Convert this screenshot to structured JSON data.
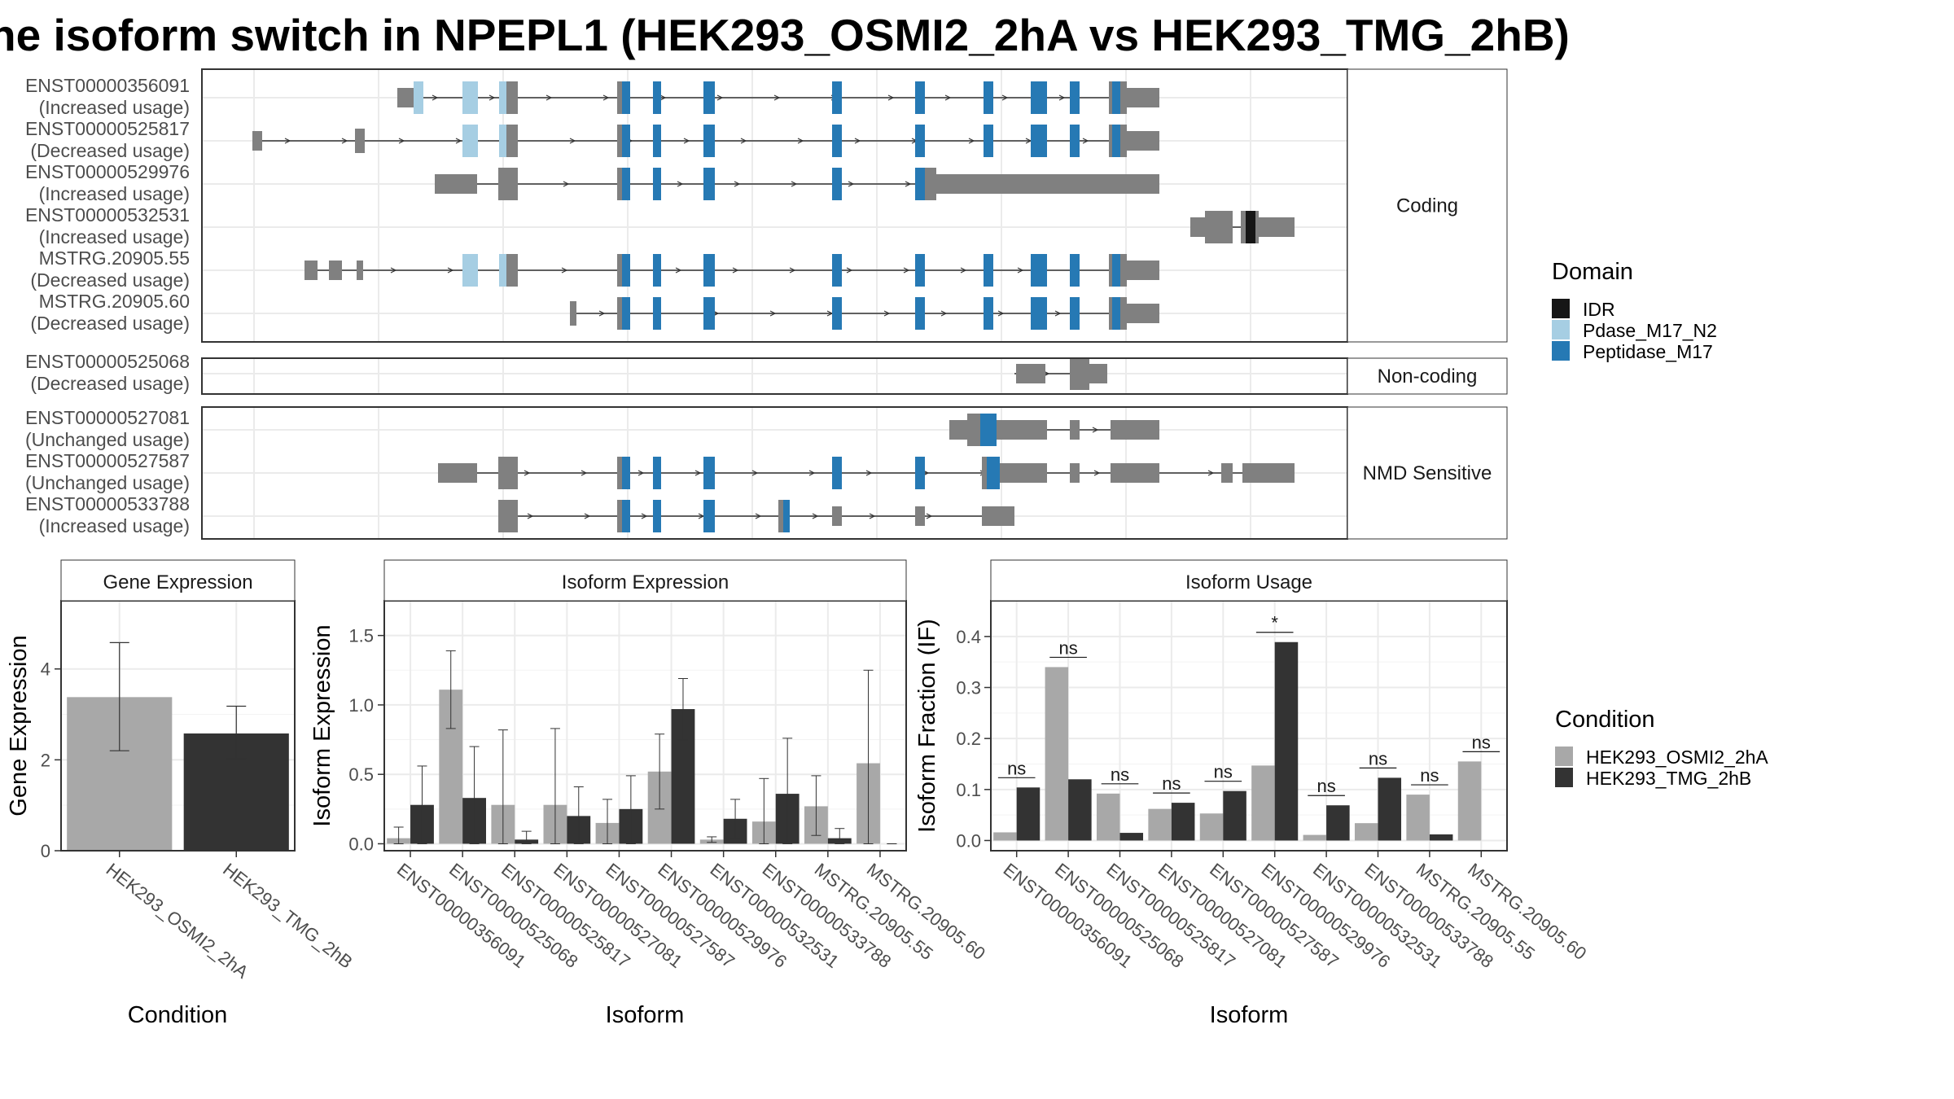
{
  "title": "he isoform switch in NPEPL1 (HEK293_OSMI2_2hA vs HEK293_TMG_2hB)",
  "colors": {
    "idr": "#161616",
    "pdase": "#a6cee3",
    "peptidase": "#2679b4",
    "utr": "#808080",
    "cond_a": "#a8a8a8",
    "cond_b": "#333333",
    "grid": "#ebebeb",
    "strip_bg": "#ffffff",
    "frame": "#333333"
  },
  "structure": {
    "panels": [
      {
        "key": "coding",
        "label": "Coding",
        "rows": [
          {
            "name": "ENST00000356091",
            "usage": "(Increased usage)"
          },
          {
            "name": "ENST00000525817",
            "usage": "(Decreased usage)"
          },
          {
            "name": "ENST00000529976",
            "usage": "(Increased usage)"
          },
          {
            "name": "ENST00000532531",
            "usage": "(Increased usage)"
          },
          {
            "name": "MSTRG.20905.55",
            "usage": "(Decreased usage)"
          },
          {
            "name": "MSTRG.20905.60",
            "usage": "(Decreased usage)"
          }
        ]
      },
      {
        "key": "noncoding",
        "label": "Non-coding",
        "rows": [
          {
            "name": "ENST00000525068",
            "usage": "(Decreased usage)"
          }
        ]
      },
      {
        "key": "nmd",
        "label": "NMD Sensitive",
        "rows": [
          {
            "name": "ENST00000527081",
            "usage": "(Unchanged usage)"
          },
          {
            "name": "ENST00000527587",
            "usage": "(Unchanged usage)"
          },
          {
            "name": "ENST00000533788",
            "usage": "(Increased usage)"
          }
        ]
      }
    ]
  },
  "legend_domain": {
    "title": "Domain",
    "items": [
      {
        "label": "IDR",
        "color": "#161616"
      },
      {
        "label": "Pdase_M17_N2",
        "color": "#a6cee3"
      },
      {
        "label": "Peptidase_M17",
        "color": "#2679b4"
      }
    ]
  },
  "legend_condition": {
    "title": "Condition",
    "items": [
      {
        "label": "HEK293_OSMI2_2hA",
        "color": "#a8a8a8"
      },
      {
        "label": "HEK293_TMG_2hB",
        "color": "#333333"
      }
    ]
  },
  "chart_data": [
    {
      "type": "bar",
      "strip": "Gene Expression",
      "xlabel": "Condition",
      "ylabel": "Gene Expression",
      "ylim": [
        0,
        5.5
      ],
      "yticks": [
        0,
        2,
        4
      ],
      "categories": [
        "HEK293_OSMI2_2hA",
        "HEK293_TMG_2hB"
      ],
      "values": [
        3.38,
        2.58
      ],
      "err_low": [
        2.2,
        2.03
      ],
      "err_high": [
        4.58,
        3.18
      ],
      "grid": true
    },
    {
      "type": "bar",
      "strip": "Isoform Expression",
      "xlabel": "Isoform",
      "ylabel": "Isoform Expression",
      "ylim": [
        -0.05,
        1.75
      ],
      "yticks": [
        0.0,
        0.5,
        1.0,
        1.5
      ],
      "categories": [
        "ENST00000356091",
        "ENST00000525068",
        "ENST00000525817",
        "ENST00000527081",
        "ENST00000527587",
        "ENST00000529976",
        "ENST00000532531",
        "ENST00000533788",
        "MSTRG.20905.55",
        "MSTRG.20905.60"
      ],
      "series": [
        {
          "name": "HEK293_OSMI2_2hA",
          "values": [
            0.04,
            1.11,
            0.28,
            0.28,
            0.15,
            0.52,
            0.03,
            0.16,
            0.27,
            0.58
          ],
          "err_low": [
            0.0,
            0.83,
            0.0,
            0.0,
            0.0,
            0.25,
            0.01,
            0.0,
            0.06,
            0.0
          ],
          "err_high": [
            0.12,
            1.39,
            0.82,
            0.83,
            0.32,
            0.79,
            0.05,
            0.47,
            0.49,
            1.25
          ]
        },
        {
          "name": "HEK293_TMG_2hB",
          "values": [
            0.28,
            0.33,
            0.03,
            0.2,
            0.25,
            0.97,
            0.18,
            0.36,
            0.04,
            0.0
          ],
          "err_low": [
            0.0,
            0.0,
            0.0,
            0.0,
            0.0,
            0.75,
            0.04,
            0.0,
            0.0,
            0.0
          ],
          "err_high": [
            0.56,
            0.7,
            0.09,
            0.41,
            0.49,
            1.19,
            0.32,
            0.76,
            0.11,
            0.0
          ]
        }
      ],
      "grid": true
    },
    {
      "type": "bar",
      "strip": "Isoform Usage",
      "xlabel": "Isoform",
      "ylabel": "Isoform Fraction (IF)",
      "ylim": [
        -0.02,
        0.47
      ],
      "yticks": [
        0.0,
        0.1,
        0.2,
        0.3,
        0.4
      ],
      "categories": [
        "ENST00000356091",
        "ENST00000525068",
        "ENST00000525817",
        "ENST00000527081",
        "ENST00000527587",
        "ENST00000529976",
        "ENST00000532531",
        "ENST00000533788",
        "MSTRG.20905.55",
        "MSTRG.20905.60"
      ],
      "series": [
        {
          "name": "HEK293_OSMI2_2hA",
          "values": [
            0.016,
            0.34,
            0.092,
            0.062,
            0.053,
            0.147,
            0.011,
            0.034,
            0.09,
            0.155
          ]
        },
        {
          "name": "HEK293_TMG_2hB",
          "values": [
            0.104,
            0.12,
            0.015,
            0.074,
            0.097,
            0.389,
            0.069,
            0.123,
            0.012,
            0.0
          ]
        }
      ],
      "significance": [
        "ns",
        "ns",
        "ns",
        "ns",
        "ns",
        "*",
        "ns",
        "ns",
        "ns",
        "ns"
      ],
      "grid": true
    }
  ]
}
